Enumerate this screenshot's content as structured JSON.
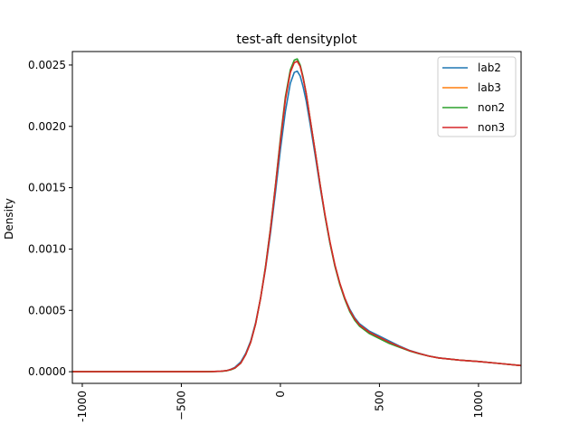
{
  "chart_data": {
    "type": "line",
    "title": "test-aft densityplot",
    "xlabel": "",
    "ylabel": "Density",
    "xlim": [
      -1050,
      1215
    ],
    "ylim": [
      -9.5e-05,
      0.00261
    ],
    "x_ticks": [
      -1000,
      -500,
      0,
      500,
      1000
    ],
    "x_tick_labels": [
      "-1000",
      "−500",
      "0",
      "500",
      "1000"
    ],
    "y_ticks": [
      0,
      0.0005,
      0.001,
      0.0015,
      0.002,
      0.0025
    ],
    "y_tick_labels": [
      "0.0000",
      "0.0005",
      "0.0010",
      "0.0015",
      "0.0020",
      "0.0025"
    ],
    "grid": false,
    "legend_position": "top-right",
    "x": [
      -1050,
      -900,
      -700,
      -500,
      -400,
      -350,
      -300,
      -270,
      -250,
      -230,
      -200,
      -175,
      -150,
      -125,
      -100,
      -75,
      -50,
      -25,
      0,
      25,
      50,
      70,
      85,
      100,
      115,
      130,
      150,
      175,
      200,
      225,
      250,
      275,
      300,
      325,
      350,
      375,
      400,
      450,
      500,
      550,
      600,
      650,
      700,
      750,
      800,
      900,
      1000,
      1100,
      1215
    ],
    "series": [
      {
        "name": "lab2",
        "color": "#1f77b4",
        "values": [
          0,
          0,
          0,
          0,
          0,
          1e-06,
          4e-06,
          1e-05,
          2e-05,
          3.5e-05,
          8e-05,
          0.00015,
          0.00025,
          0.0004,
          0.0006,
          0.00084,
          0.00113,
          0.00146,
          0.00181,
          0.00212,
          0.00235,
          0.00244,
          0.00245,
          0.00241,
          0.00232,
          0.00221,
          0.00202,
          0.00177,
          0.00151,
          0.00127,
          0.00105,
          0.00087,
          0.00072,
          0.0006,
          0.00051,
          0.00044,
          0.00039,
          0.00033,
          0.00029,
          0.00025,
          0.00021,
          0.000175,
          0.00015,
          0.000128,
          0.000113,
          9.5e-05,
          8.3e-05,
          6.8e-05,
          5e-05
        ]
      },
      {
        "name": "lab3",
        "color": "#ff7f0e",
        "values": [
          0,
          0,
          0,
          0,
          0,
          1e-06,
          4e-06,
          9e-06,
          1.8e-05,
          3e-05,
          7e-05,
          0.00014,
          0.00024,
          0.00039,
          0.0006,
          0.00085,
          0.00116,
          0.00151,
          0.00188,
          0.00221,
          0.00244,
          0.00252,
          0.00253,
          0.00249,
          0.00239,
          0.00227,
          0.00206,
          0.0018,
          0.00153,
          0.00128,
          0.00106,
          0.00087,
          0.00072,
          0.0006,
          0.0005,
          0.00043,
          0.00038,
          0.00032,
          0.00028,
          0.00024,
          0.000205,
          0.000172,
          0.000148,
          0.000127,
          0.000112,
          9.5e-05,
          8.3e-05,
          6.8e-05,
          5e-05
        ]
      },
      {
        "name": "non2",
        "color": "#2ca02c",
        "values": [
          0,
          0,
          0,
          0,
          0,
          1e-06,
          3e-06,
          8e-06,
          1.6e-05,
          2.8e-05,
          7e-05,
          0.00014,
          0.00024,
          0.00039,
          0.0006,
          0.00086,
          0.00117,
          0.00152,
          0.0019,
          0.00224,
          0.00246,
          0.00254,
          0.00255,
          0.0025,
          0.0024,
          0.00227,
          0.00206,
          0.0018,
          0.00153,
          0.00127,
          0.00105,
          0.00086,
          0.00071,
          0.00059,
          0.00049,
          0.00042,
          0.00037,
          0.00031,
          0.00027,
          0.00023,
          0.0002,
          0.00017,
          0.000147,
          0.000127,
          0.000112,
          9.5e-05,
          8.3e-05,
          6.8e-05,
          5e-05
        ]
      },
      {
        "name": "non3",
        "color": "#d62728",
        "values": [
          0,
          0,
          0,
          0,
          0,
          1e-06,
          4e-06,
          9e-06,
          1.8e-05,
          3e-05,
          7e-05,
          0.00014,
          0.00024,
          0.00039,
          0.0006,
          0.00085,
          0.00116,
          0.00151,
          0.00188,
          0.00222,
          0.00244,
          0.00252,
          0.00253,
          0.00249,
          0.00239,
          0.00227,
          0.00206,
          0.0018,
          0.00153,
          0.00128,
          0.00106,
          0.00087,
          0.00072,
          0.0006,
          0.0005,
          0.00043,
          0.00038,
          0.00032,
          0.00028,
          0.00024,
          0.000205,
          0.000172,
          0.000148,
          0.000127,
          0.000112,
          9.5e-05,
          8.3e-05,
          6.8e-05,
          5e-05
        ]
      }
    ]
  }
}
